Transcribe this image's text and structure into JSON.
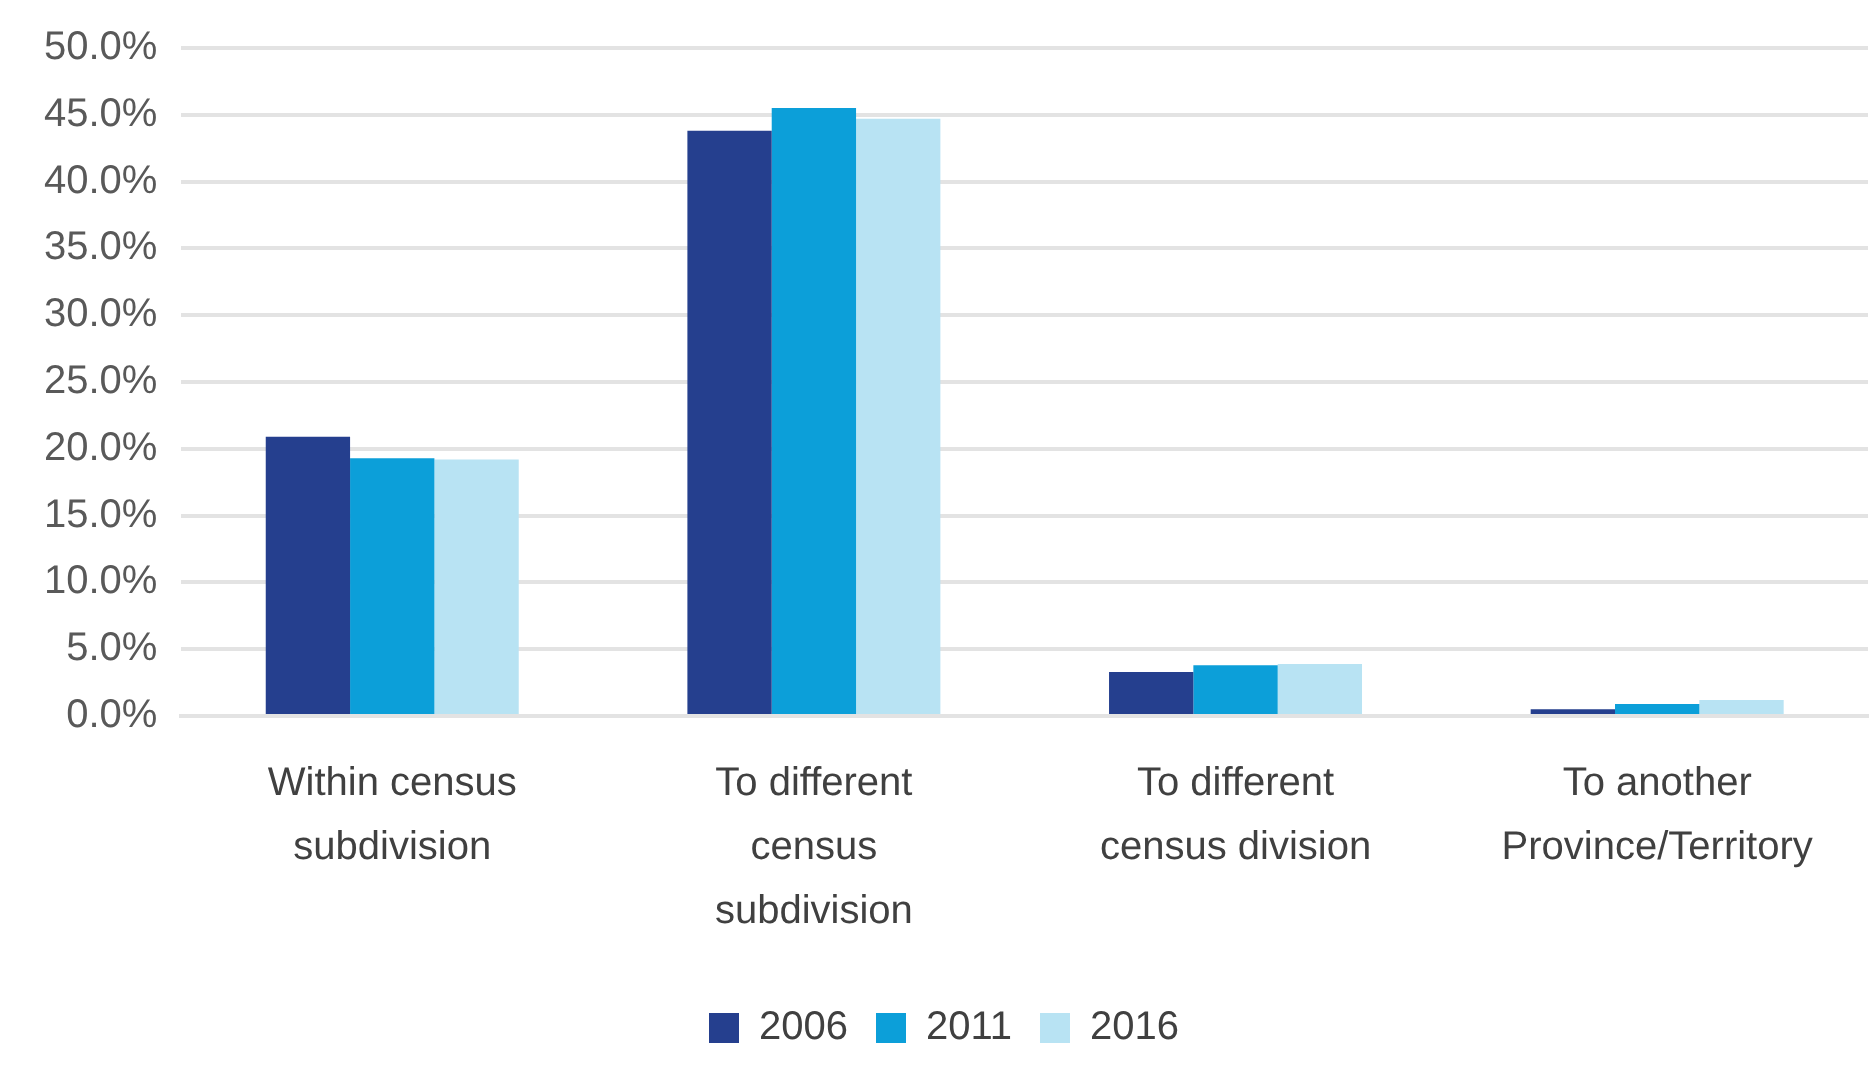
{
  "chart_data": {
    "type": "bar",
    "categories": [
      "Within census subdivision",
      "To different census subdivision",
      "To different census division",
      "To another Province/Territory"
    ],
    "series": [
      {
        "name": "2006",
        "color": "#253f8e",
        "values": [
          20.9,
          43.8,
          3.3,
          0.5
        ]
      },
      {
        "name": "2011",
        "color": "#0c9fd9",
        "values": [
          19.3,
          45.5,
          3.8,
          0.9
        ]
      },
      {
        "name": "2016",
        "color": "#b8e3f3",
        "values": [
          19.2,
          44.7,
          3.9,
          1.2
        ]
      }
    ],
    "ylim": [
      0,
      50
    ],
    "yticks": [
      {
        "value": 0,
        "label": "0.0%"
      },
      {
        "value": 5,
        "label": "5.0%"
      },
      {
        "value": 10,
        "label": "10.0%"
      },
      {
        "value": 15,
        "label": "15.0%"
      },
      {
        "value": 20,
        "label": "20.0%"
      },
      {
        "value": 25,
        "label": "25.0%"
      },
      {
        "value": 30,
        "label": "30.0%"
      },
      {
        "value": 35,
        "label": "35.0%"
      },
      {
        "value": 40,
        "label": "40.0%"
      },
      {
        "value": 45,
        "label": "45.0%"
      },
      {
        "value": 50,
        "label": "50.0%"
      }
    ],
    "grid": "y",
    "legend": "bottom"
  }
}
